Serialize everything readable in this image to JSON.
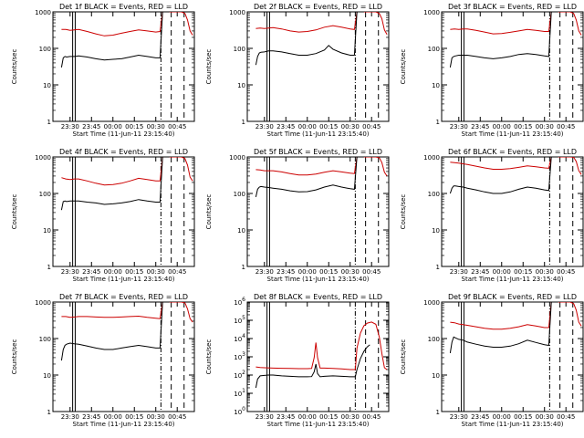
{
  "chart_data": {
    "type": "line",
    "x_unit": "UT time (hours of day, 11-Jun-11)",
    "x_range": [
      23.3,
      24.95
    ],
    "xtick_values": [
      23.5,
      23.75,
      24.0,
      24.25,
      24.5,
      24.75
    ],
    "xtick_labels": [
      "23:30",
      "23:45",
      "00:00",
      "00:15",
      "00:30",
      "00:45"
    ],
    "xlabel": "Start Time (11-Jun-11 23:15:40)",
    "ylabel": "Counts/sec",
    "yscale": "log",
    "series_colors": {
      "events": "#000000",
      "lld": "#cc0000"
    },
    "vlines": [
      {
        "x": 23.53,
        "style": "solid"
      },
      {
        "x": 23.56,
        "style": "solid"
      },
      {
        "x": 24.56,
        "style": "dashdot"
      },
      {
        "x": 24.68,
        "style": "dash"
      },
      {
        "x": 24.83,
        "style": "dash"
      }
    ],
    "panels": [
      {
        "title": "Det 1f BLACK = Events, RED = LLD",
        "ylim": [
          1,
          1000
        ],
        "ytick_labels": [
          "1",
          "10",
          "100",
          "1000"
        ],
        "events": {
          "x": [
            23.4,
            23.42,
            23.44,
            23.46,
            23.5,
            23.55,
            23.6,
            23.7,
            23.8,
            23.9,
            24.0,
            24.1,
            24.2,
            24.3,
            24.4,
            24.5,
            24.55,
            24.58,
            24.61,
            24.64,
            24.66
          ],
          "y": [
            30,
            55,
            60,
            58,
            60,
            60,
            62,
            58,
            52,
            48,
            50,
            52,
            58,
            65,
            60,
            55,
            55,
            1000,
            1000,
            1000,
            1000
          ]
        },
        "lld": {
          "x": [
            23.4,
            23.45,
            23.5,
            23.55,
            23.6,
            23.7,
            23.8,
            23.9,
            24.0,
            24.1,
            24.2,
            24.3,
            24.4,
            24.5,
            24.55,
            24.58,
            24.6,
            24.63,
            24.66,
            24.7,
            24.75,
            24.8,
            24.84,
            24.87,
            24.9,
            24.93
          ],
          "y": [
            330,
            330,
            310,
            320,
            330,
            290,
            250,
            220,
            230,
            260,
            290,
            320,
            300,
            280,
            290,
            1000,
            1000,
            1000,
            1000,
            1000,
            1000,
            1000,
            900,
            600,
            300,
            230
          ]
        }
      },
      {
        "title": "Det 2f BLACK = Events, RED = LLD",
        "ylim": [
          1,
          1000
        ],
        "ytick_labels": [
          "1",
          "10",
          "100",
          "1000"
        ],
        "events": {
          "x": [
            23.4,
            23.42,
            23.44,
            23.46,
            23.5,
            23.55,
            23.6,
            23.7,
            23.8,
            23.9,
            24.0,
            24.1,
            24.2,
            24.25,
            24.3,
            24.4,
            24.5,
            24.55,
            24.58,
            24.61,
            24.64,
            24.66
          ],
          "y": [
            35,
            60,
            75,
            78,
            80,
            85,
            85,
            80,
            72,
            65,
            65,
            72,
            90,
            120,
            95,
            75,
            65,
            65,
            1000,
            1000,
            1000,
            1000
          ]
        },
        "lld": {
          "x": [
            23.4,
            23.45,
            23.5,
            23.55,
            23.6,
            23.7,
            23.8,
            23.9,
            24.0,
            24.1,
            24.2,
            24.3,
            24.4,
            24.5,
            24.55,
            24.58,
            24.6,
            24.63,
            24.66,
            24.7,
            24.75,
            24.8,
            24.84,
            24.87,
            24.9,
            24.93
          ],
          "y": [
            350,
            360,
            350,
            360,
            370,
            340,
            300,
            280,
            290,
            320,
            380,
            420,
            380,
            340,
            330,
            1000,
            1000,
            1000,
            1000,
            1000,
            1000,
            1000,
            900,
            650,
            320,
            240
          ]
        }
      },
      {
        "title": "Det 3f BLACK = Events, RED = LLD",
        "ylim": [
          1,
          1000
        ],
        "ytick_labels": [
          "1",
          "10",
          "100",
          "1000"
        ],
        "events": {
          "x": [
            23.4,
            23.42,
            23.44,
            23.46,
            23.5,
            23.55,
            23.6,
            23.7,
            23.8,
            23.9,
            24.0,
            24.1,
            24.2,
            24.3,
            24.4,
            24.5,
            24.55,
            24.58,
            24.61,
            24.64,
            24.66
          ],
          "y": [
            30,
            55,
            60,
            62,
            65,
            65,
            65,
            60,
            55,
            52,
            55,
            60,
            68,
            72,
            68,
            62,
            60,
            1000,
            1000,
            1000,
            1000
          ]
        },
        "lld": {
          "x": [
            23.4,
            23.45,
            23.5,
            23.55,
            23.6,
            23.7,
            23.8,
            23.9,
            24.0,
            24.1,
            24.2,
            24.3,
            24.4,
            24.5,
            24.55,
            24.58,
            24.6,
            24.63,
            24.66,
            24.7,
            24.75,
            24.8,
            24.84,
            24.87,
            24.9,
            24.93
          ],
          "y": [
            330,
            340,
            330,
            340,
            340,
            310,
            280,
            250,
            255,
            275,
            300,
            330,
            310,
            290,
            290,
            1000,
            1000,
            1000,
            1000,
            1000,
            1000,
            1000,
            900,
            600,
            300,
            230
          ]
        }
      },
      {
        "title": "Det 4f BLACK = Events, RED = LLD",
        "ylim": [
          1,
          1000
        ],
        "ytick_labels": [
          "1",
          "10",
          "100",
          "1000"
        ],
        "events": {
          "x": [
            23.4,
            23.42,
            23.44,
            23.46,
            23.5,
            23.55,
            23.6,
            23.7,
            23.8,
            23.9,
            24.0,
            24.1,
            24.2,
            24.3,
            24.4,
            24.5,
            24.55,
            24.58,
            24.61,
            24.64,
            24.66
          ],
          "y": [
            35,
            60,
            62,
            60,
            62,
            62,
            62,
            58,
            55,
            50,
            52,
            55,
            60,
            68,
            62,
            58,
            58,
            1000,
            1000,
            1000,
            1000
          ]
        },
        "lld": {
          "x": [
            23.4,
            23.45,
            23.5,
            23.55,
            23.6,
            23.7,
            23.8,
            23.9,
            24.0,
            24.1,
            24.2,
            24.3,
            24.4,
            24.5,
            24.55,
            24.58,
            24.6,
            24.63,
            24.66,
            24.7,
            24.75,
            24.8,
            24.84,
            24.87,
            24.9,
            24.93
          ],
          "y": [
            270,
            250,
            240,
            250,
            250,
            220,
            190,
            170,
            175,
            190,
            220,
            260,
            240,
            220,
            220,
            1000,
            1000,
            1000,
            1000,
            1000,
            1000,
            1000,
            900,
            600,
            280,
            220
          ]
        }
      },
      {
        "title": "Det 5f BLACK = Events, RED = LLD",
        "ylim": [
          1,
          1000
        ],
        "ytick_labels": [
          "1",
          "10",
          "100",
          "1000"
        ],
        "events": {
          "x": [
            23.4,
            23.42,
            23.44,
            23.46,
            23.5,
            23.55,
            23.6,
            23.7,
            23.8,
            23.9,
            24.0,
            24.1,
            24.2,
            24.3,
            24.4,
            24.5,
            24.55,
            24.58,
            24.61,
            24.64,
            24.66
          ],
          "y": [
            80,
            130,
            150,
            155,
            150,
            145,
            140,
            130,
            118,
            110,
            112,
            125,
            150,
            170,
            150,
            135,
            130,
            1000,
            1000,
            1000,
            1000
          ]
        },
        "lld": {
          "x": [
            23.4,
            23.45,
            23.5,
            23.55,
            23.6,
            23.7,
            23.8,
            23.9,
            24.0,
            24.1,
            24.2,
            24.3,
            24.4,
            24.5,
            24.55,
            24.58,
            24.6,
            24.63,
            24.66,
            24.7,
            24.75,
            24.8,
            24.84,
            24.87,
            24.9,
            24.93
          ],
          "y": [
            450,
            440,
            420,
            420,
            420,
            390,
            350,
            320,
            320,
            340,
            380,
            420,
            390,
            360,
            350,
            1000,
            1000,
            1000,
            1000,
            1000,
            1000,
            1000,
            950,
            700,
            380,
            300
          ]
        }
      },
      {
        "title": "Det 6f BLACK = Events, RED = LLD",
        "ylim": [
          1,
          1000
        ],
        "ytick_labels": [
          "1",
          "10",
          "100",
          "1000"
        ],
        "events": {
          "x": [
            23.4,
            23.42,
            23.44,
            23.46,
            23.5,
            23.55,
            23.6,
            23.7,
            23.8,
            23.9,
            24.0,
            24.1,
            24.2,
            24.3,
            24.4,
            24.5,
            24.55,
            24.58,
            24.61,
            24.64,
            24.66
          ],
          "y": [
            100,
            140,
            160,
            160,
            155,
            150,
            140,
            125,
            110,
            100,
            100,
            110,
            130,
            150,
            140,
            125,
            120,
            1000,
            1000,
            1000,
            1000
          ]
        },
        "lld": {
          "x": [
            23.4,
            23.45,
            23.5,
            23.55,
            23.6,
            23.7,
            23.8,
            23.9,
            24.0,
            24.1,
            24.2,
            24.3,
            24.4,
            24.5,
            24.55,
            24.58,
            24.6,
            24.63,
            24.66,
            24.7,
            24.75,
            24.8,
            24.84,
            24.87,
            24.9,
            24.93
          ],
          "y": [
            720,
            700,
            680,
            650,
            620,
            560,
            500,
            460,
            460,
            480,
            520,
            570,
            540,
            500,
            490,
            1000,
            1000,
            1000,
            1000,
            1000,
            1000,
            1000,
            980,
            750,
            420,
            330
          ]
        }
      },
      {
        "title": "Det 7f BLACK = Events, RED = LLD",
        "ylim": [
          1,
          1000
        ],
        "ytick_labels": [
          "1",
          "10",
          "100",
          "1000"
        ],
        "events": {
          "x": [
            23.4,
            23.42,
            23.44,
            23.46,
            23.5,
            23.55,
            23.6,
            23.7,
            23.8,
            23.9,
            24.0,
            24.1,
            24.2,
            24.3,
            24.4,
            24.5,
            24.55,
            24.58,
            24.61,
            24.64,
            24.66
          ],
          "y": [
            25,
            50,
            65,
            70,
            75,
            72,
            70,
            62,
            55,
            50,
            50,
            55,
            60,
            65,
            60,
            55,
            55,
            1000,
            1000,
            1000,
            1000
          ]
        },
        "lld": {
          "x": [
            23.4,
            23.45,
            23.5,
            23.55,
            23.6,
            23.7,
            23.8,
            23.9,
            24.0,
            24.1,
            24.2,
            24.3,
            24.4,
            24.5,
            24.55,
            24.58,
            24.6,
            24.63,
            24.66,
            24.7,
            24.75,
            24.8,
            24.84,
            24.87,
            24.9,
            24.93
          ],
          "y": [
            400,
            400,
            380,
            390,
            400,
            400,
            390,
            380,
            380,
            390,
            400,
            410,
            380,
            360,
            350,
            1000,
            1000,
            1000,
            1000,
            1000,
            1000,
            1000,
            950,
            650,
            350,
            280
          ]
        }
      },
      {
        "title": "Det 8f BLACK = Events, RED = LLD",
        "ylim": [
          1,
          1000000
        ],
        "ytick_labels": [
          "10^0",
          "10^1",
          "10^2",
          "10^3",
          "10^4",
          "10^5",
          "10^6"
        ],
        "events": {
          "x": [
            23.4,
            23.42,
            23.45,
            23.5,
            23.55,
            23.6,
            23.7,
            23.8,
            23.9,
            24.0,
            24.05,
            24.08,
            24.1,
            24.12,
            24.15,
            24.2,
            24.3,
            24.4,
            24.5,
            24.56,
            24.58,
            24.62,
            24.66,
            24.7,
            24.73
          ],
          "y": [
            20,
            60,
            90,
            95,
            100,
            100,
            90,
            85,
            80,
            80,
            82,
            150,
            400,
            120,
            80,
            85,
            90,
            85,
            80,
            80,
            200,
            800,
            2000,
            3500,
            4500
          ]
        },
        "lld": {
          "x": [
            23.4,
            23.45,
            23.5,
            23.6,
            23.7,
            23.8,
            23.9,
            24.0,
            24.05,
            24.08,
            24.1,
            24.12,
            24.15,
            24.2,
            24.3,
            24.4,
            24.5,
            24.56,
            24.58,
            24.62,
            24.66,
            24.7,
            24.75,
            24.8,
            24.84,
            24.87,
            24.9,
            24.93
          ],
          "y": [
            280,
            260,
            250,
            240,
            235,
            230,
            225,
            225,
            230,
            900,
            6000,
            900,
            240,
            240,
            230,
            220,
            200,
            200,
            3000,
            20000,
            50000,
            70000,
            80000,
            60000,
            12000,
            1500,
            250,
            200
          ]
        }
      },
      {
        "title": "Det 9f BLACK = Events, RED = LLD",
        "ylim": [
          1,
          1000
        ],
        "ytick_labels": [
          "1",
          "10",
          "100",
          "1000"
        ],
        "events": {
          "x": [
            23.4,
            23.42,
            23.44,
            23.46,
            23.5,
            23.55,
            23.6,
            23.7,
            23.8,
            23.9,
            24.0,
            24.1,
            24.2,
            24.3,
            24.4,
            24.5,
            24.55,
            24.58,
            24.61,
            24.64,
            24.66
          ],
          "y": [
            40,
            80,
            110,
            105,
            95,
            90,
            80,
            70,
            62,
            58,
            58,
            62,
            72,
            90,
            78,
            68,
            65,
            1000,
            1000,
            1000,
            1000
          ]
        },
        "lld": {
          "x": [
            23.4,
            23.45,
            23.5,
            23.55,
            23.6,
            23.7,
            23.8,
            23.9,
            24.0,
            24.1,
            24.2,
            24.3,
            24.4,
            24.5,
            24.55,
            24.58,
            24.6,
            24.63,
            24.66,
            24.7,
            24.75,
            24.8,
            24.84,
            24.87,
            24.9,
            24.93
          ],
          "y": [
            280,
            270,
            250,
            240,
            230,
            210,
            190,
            180,
            180,
            190,
            210,
            240,
            220,
            200,
            200,
            1000,
            1000,
            1000,
            1000,
            1000,
            1000,
            1000,
            900,
            600,
            280,
            220
          ]
        }
      }
    ]
  }
}
